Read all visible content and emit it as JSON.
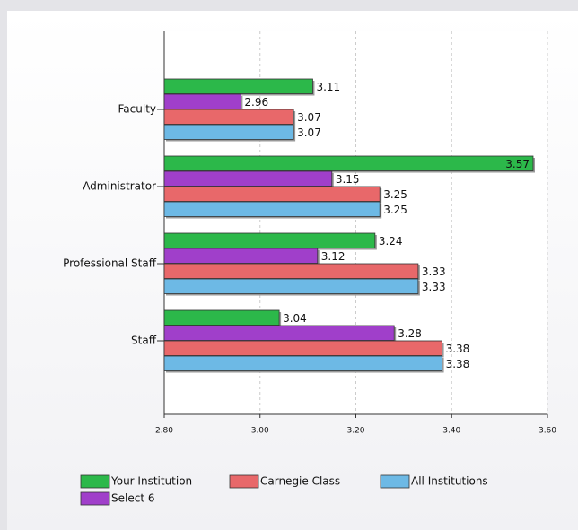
{
  "chart_data": {
    "type": "hbar",
    "categories": [
      "Faculty",
      "Administrator",
      "Professional Staff",
      "Staff"
    ],
    "series": [
      {
        "name": "Your Institution",
        "color": "#2cb84a",
        "values": [
          3.11,
          3.57,
          3.24,
          3.04
        ]
      },
      {
        "name": "Carnegie Class",
        "color": "#e8686a",
        "values": [
          3.07,
          3.25,
          3.33,
          3.38
        ]
      },
      {
        "name": "All Institutions",
        "color": "#6db9e5",
        "values": [
          3.07,
          3.25,
          3.33,
          3.38
        ]
      },
      {
        "name": "Select 6",
        "color": "#a03fca",
        "values": [
          2.96,
          3.15,
          3.12,
          3.28
        ]
      }
    ],
    "xlim": [
      2.8,
      3.6
    ],
    "xticks": [
      {
        "value": 2.8,
        "label": "2.80"
      },
      {
        "value": 3.0,
        "label": "3.00"
      },
      {
        "value": 3.2,
        "label": "3.20"
      },
      {
        "value": 3.4,
        "label": "3.40"
      },
      {
        "value": 3.6,
        "label": "3.60"
      }
    ],
    "grid": true,
    "legend": "bottom"
  }
}
